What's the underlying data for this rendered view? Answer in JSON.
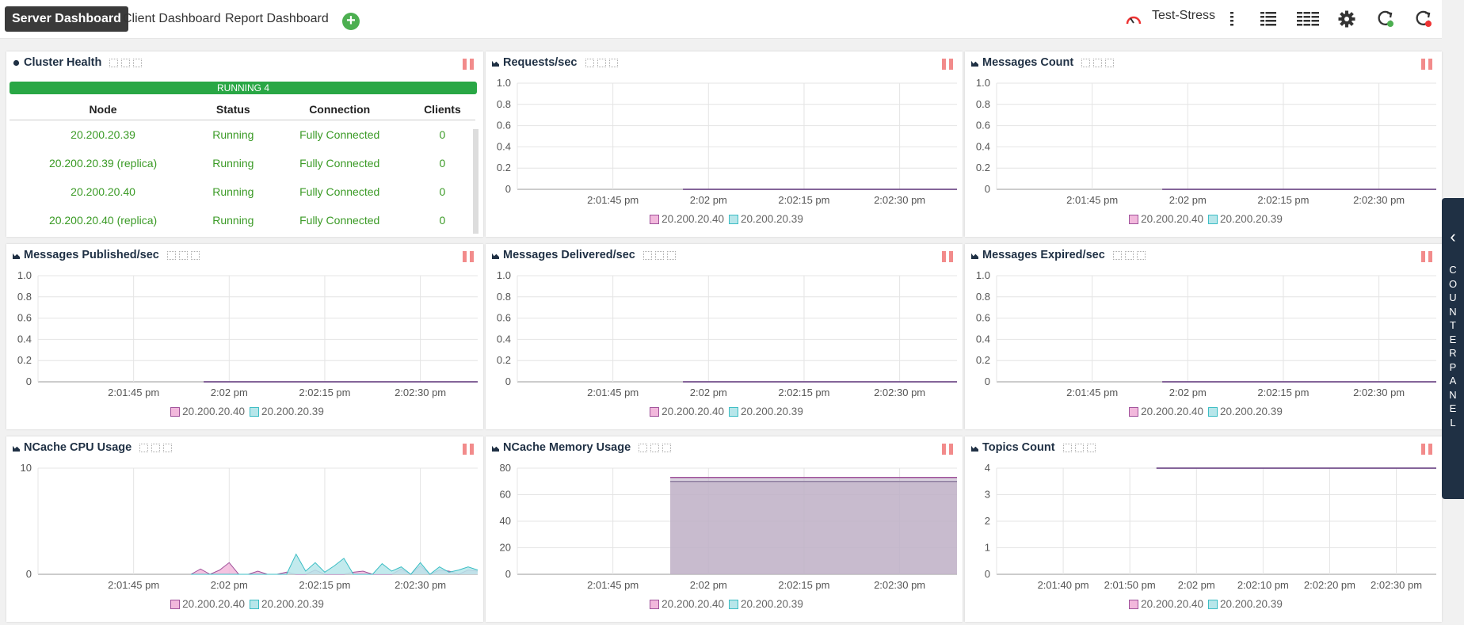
{
  "toolbar": {
    "tabs": [
      "Server Dashboard",
      "Client Dashboard",
      "Report Dashboard"
    ],
    "add_symbol": "+",
    "cluster_name": "Test-Stress"
  },
  "colors": {
    "accent_dark": "#3a3a3a",
    "running_green": "#29a745",
    "series_40_line": "#a0529b",
    "series_40_fill": "#f2b8dc",
    "series_39_line": "#3bbdc4",
    "series_39_fill": "#b7e6ea",
    "memory_fill": "#c0b2c8",
    "counter_panel": "#1f3044"
  },
  "icons": {
    "tabs_add": "add-circle-icon",
    "cluster": "speedometer-icon",
    "layout_1col": "single-column-layout-icon",
    "layout_2col": "two-column-layout-icon",
    "layout_3col": "three-column-layout-icon",
    "settings": "gear-icon",
    "refresh": "refresh-green-icon",
    "stop_refresh": "refresh-red-icon",
    "pause": "pause-icon"
  },
  "cluster_health": {
    "title": "Cluster Health",
    "running_label": "RUNNING 4",
    "columns": [
      "Node",
      "Status",
      "Connection",
      "Clients"
    ],
    "rows": [
      [
        "20.200.20.39",
        "Running",
        "Fully Connected",
        "0"
      ],
      [
        "20.200.20.39 (replica)",
        "Running",
        "Fully Connected",
        "0"
      ],
      [
        "20.200.20.40",
        "Running",
        "Fully Connected",
        "0"
      ],
      [
        "20.200.20.40 (replica)",
        "Running",
        "Fully Connected",
        "0"
      ]
    ]
  },
  "counter_panel": {
    "label": "COUNTER PANEL"
  },
  "chart_data": [
    {
      "id": "requests",
      "type": "line",
      "title": "Requests/sec",
      "x_ticks": [
        "2:01:45 pm",
        "2:02 pm",
        "2:02:15 pm",
        "2:02:30 pm"
      ],
      "y_ticks": [
        "1.0",
        "0.8",
        "0.6",
        "0.4",
        "0.2",
        "0"
      ],
      "ylim": [
        0,
        1
      ],
      "x_unit": "seconds since 2:01:30 pm",
      "xlim": [
        0,
        69
      ],
      "tick_seconds": [
        15,
        30,
        45,
        60
      ],
      "data_start": 26,
      "series": [
        {
          "name": "20.200.20.40",
          "values": [
            0,
            0
          ]
        },
        {
          "name": "20.200.20.39",
          "values": [
            0,
            0
          ]
        }
      ],
      "legend": [
        "20.200.20.40",
        "20.200.20.39"
      ]
    },
    {
      "id": "messages_count",
      "type": "line",
      "title": "Messages Count",
      "x_ticks": [
        "2:01:45 pm",
        "2:02 pm",
        "2:02:15 pm",
        "2:02:30 pm"
      ],
      "y_ticks": [
        "1.0",
        "0.8",
        "0.6",
        "0.4",
        "0.2",
        "0"
      ],
      "ylim": [
        0,
        1
      ],
      "xlim": [
        0,
        69
      ],
      "tick_seconds": [
        15,
        30,
        45,
        60
      ],
      "data_start": 26,
      "series": [
        {
          "name": "20.200.20.40",
          "values": [
            0,
            0
          ]
        },
        {
          "name": "20.200.20.39",
          "values": [
            0,
            0
          ]
        }
      ],
      "legend": [
        "20.200.20.40",
        "20.200.20.39"
      ]
    },
    {
      "id": "published",
      "type": "line",
      "title": "Messages Published/sec",
      "x_ticks": [
        "2:01:45 pm",
        "2:02 pm",
        "2:02:15 pm",
        "2:02:30 pm"
      ],
      "y_ticks": [
        "1.0",
        "0.8",
        "0.6",
        "0.4",
        "0.2",
        "0"
      ],
      "ylim": [
        0,
        1
      ],
      "xlim": [
        0,
        69
      ],
      "tick_seconds": [
        15,
        30,
        45,
        60
      ],
      "data_start": 26,
      "series": [
        {
          "name": "20.200.20.40",
          "values": [
            0,
            0
          ]
        },
        {
          "name": "20.200.20.39",
          "values": [
            0,
            0
          ]
        }
      ],
      "legend": [
        "20.200.20.40",
        "20.200.20.39"
      ]
    },
    {
      "id": "delivered",
      "type": "line",
      "title": "Messages Delivered/sec",
      "x_ticks": [
        "2:01:45 pm",
        "2:02 pm",
        "2:02:15 pm",
        "2:02:30 pm"
      ],
      "y_ticks": [
        "1.0",
        "0.8",
        "0.6",
        "0.4",
        "0.2",
        "0"
      ],
      "ylim": [
        0,
        1
      ],
      "xlim": [
        0,
        69
      ],
      "tick_seconds": [
        15,
        30,
        45,
        60
      ],
      "data_start": 26,
      "series": [
        {
          "name": "20.200.20.40",
          "values": [
            0,
            0
          ]
        },
        {
          "name": "20.200.20.39",
          "values": [
            0,
            0
          ]
        }
      ],
      "legend": [
        "20.200.20.40",
        "20.200.20.39"
      ]
    },
    {
      "id": "expired",
      "type": "line",
      "title": "Messages Expired/sec",
      "x_ticks": [
        "2:01:45 pm",
        "2:02 pm",
        "2:02:15 pm",
        "2:02:30 pm"
      ],
      "y_ticks": [
        "1.0",
        "0.8",
        "0.6",
        "0.4",
        "0.2",
        "0"
      ],
      "ylim": [
        0,
        1
      ],
      "xlim": [
        0,
        69
      ],
      "tick_seconds": [
        15,
        30,
        45,
        60
      ],
      "data_start": 26,
      "series": [
        {
          "name": "20.200.20.40",
          "values": [
            0,
            0
          ]
        },
        {
          "name": "20.200.20.39",
          "values": [
            0,
            0
          ]
        }
      ],
      "legend": [
        "20.200.20.40",
        "20.200.20.39"
      ]
    },
    {
      "id": "cpu",
      "type": "area",
      "title": "NCache CPU Usage",
      "x_ticks": [
        "2:01:45 pm",
        "2:02 pm",
        "2:02:15 pm",
        "2:02:30 pm"
      ],
      "y_ticks": [
        "10",
        "0"
      ],
      "ylim": [
        0,
        10
      ],
      "xlim": [
        0,
        69
      ],
      "tick_seconds": [
        15,
        30,
        45,
        60
      ],
      "data_start": 24,
      "series": [
        {
          "name": "20.200.20.40",
          "values": [
            0,
            0.5,
            0,
            0.4,
            1.1,
            0,
            0,
            0.3,
            0,
            0,
            0.2,
            0,
            0,
            0.4,
            0,
            0,
            0,
            0.2,
            0.3,
            0,
            0,
            0,
            0.5,
            0,
            0.8,
            0,
            0.4,
            0.3,
            0,
            0.4,
            0.3
          ]
        },
        {
          "name": "20.200.20.39",
          "values": [
            0,
            0,
            0,
            0,
            0,
            0,
            0,
            0,
            0,
            0,
            0,
            1.9,
            0.3,
            1.1,
            0.2,
            0.8,
            1.5,
            0,
            0,
            0,
            1.0,
            0.3,
            0.7,
            0,
            1.1,
            0,
            0.7,
            0.2,
            0.4,
            0.7,
            0.4
          ]
        }
      ],
      "legend": [
        "20.200.20.40",
        "20.200.20.39"
      ]
    },
    {
      "id": "memory",
      "type": "area",
      "title": "NCache Memory Usage",
      "x_ticks": [
        "2:01:45 pm",
        "2:02 pm",
        "2:02:15 pm",
        "2:02:30 pm"
      ],
      "y_ticks": [
        "80",
        "60",
        "40",
        "20",
        "0"
      ],
      "ylim": [
        0,
        80
      ],
      "xlim": [
        0,
        69
      ],
      "tick_seconds": [
        15,
        30,
        45,
        60
      ],
      "data_start": 24,
      "series": [
        {
          "name": "20.200.20.40",
          "values": [
            73,
            73
          ]
        },
        {
          "name": "20.200.20.39",
          "values": [
            70,
            70
          ]
        }
      ],
      "legend": [
        "20.200.20.40",
        "20.200.20.39"
      ]
    },
    {
      "id": "topics",
      "type": "line",
      "title": "Topics Count",
      "x_ticks": [
        "2:01:40 pm",
        "2:01:50 pm",
        "2:02 pm",
        "2:02:10 pm",
        "2:02:20 pm",
        "2:02:30 pm"
      ],
      "y_ticks": [
        "4",
        "3",
        "2",
        "1",
        "0"
      ],
      "ylim": [
        0,
        4
      ],
      "xlim": [
        0,
        66
      ],
      "tick_seconds": [
        10,
        20,
        30,
        40,
        50,
        60
      ],
      "data_start": 24,
      "series": [
        {
          "name": "20.200.20.40",
          "values": [
            4,
            4
          ]
        },
        {
          "name": "20.200.20.39",
          "values": [
            4,
            4
          ]
        }
      ],
      "legend": [
        "20.200.20.40",
        "20.200.20.39"
      ]
    }
  ]
}
